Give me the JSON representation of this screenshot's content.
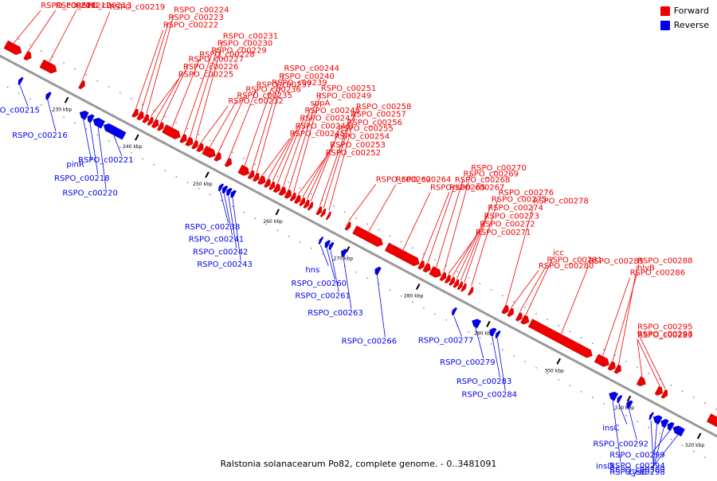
{
  "legend": {
    "forward_label": "Forward",
    "reverse_label": "Reverse",
    "forward_color": "#ee0000",
    "reverse_color": "#0000ee"
  },
  "caption": "Ralstonia solanacearum Po82, complete genome. - 0..3481091",
  "colors": {
    "forward": "#ee0000",
    "reverse": "#0000ee",
    "backbone": "#999999"
  },
  "backbone_range_kbp": [
    220,
    322
  ],
  "scale_ticks": [
    "230 kbp",
    "240 kbp",
    "250 kbp",
    "260 kbp",
    "270 kbp",
    "280 kbp",
    "290 kbp",
    "300 kbp",
    "310 kbp",
    "320 kbp"
  ],
  "forward_genes": [
    {
      "label": "RSPO_c00211",
      "start": 220.0,
      "end": 222.2
    },
    {
      "label": "RSPO_c00212",
      "start": 222.8,
      "end": 223.6
    },
    {
      "label": "RSPO_c00213",
      "start": 225.1,
      "end": 227.2
    },
    {
      "label": "RSPO_c00219",
      "start": 230.6,
      "end": 231.2
    },
    {
      "label": "RSPO_c00222",
      "start": 238.2,
      "end": 238.8
    },
    {
      "label": "RSPO_c00223",
      "start": 238.9,
      "end": 239.6
    },
    {
      "label": "RSPO_c00224",
      "start": 239.7,
      "end": 240.3
    },
    {
      "label": "RSPO_c00225",
      "start": 240.4,
      "end": 240.9
    },
    {
      "label": "RSPO_c00226",
      "start": 241.0,
      "end": 241.7
    },
    {
      "label": "RSPO_c00227",
      "start": 241.8,
      "end": 242.4
    },
    {
      "label": "RSPO_c00228",
      "start": 242.5,
      "end": 244.8
    },
    {
      "label": "RSPO_c00229",
      "start": 245.0,
      "end": 245.7
    },
    {
      "label": "RSPO_c00230",
      "start": 245.8,
      "end": 246.6
    },
    {
      "label": "RSPO_c00231",
      "start": 246.7,
      "end": 247.3
    },
    {
      "label": "RSPO_c00232",
      "start": 247.4,
      "end": 248.1
    },
    {
      "label": "RSPO_c00235",
      "start": 248.2,
      "end": 249.8
    },
    {
      "label": "RSPO_c00236",
      "start": 249.9,
      "end": 250.6
    },
    {
      "label": "RSPO_c00237",
      "start": 251.4,
      "end": 252.1
    },
    {
      "label": "RSPO_c00239",
      "start": 253.3,
      "end": 254.6
    },
    {
      "label": "RSPO_c00240",
      "start": 254.7,
      "end": 255.3
    },
    {
      "label": "RSPO_c00244",
      "start": 255.4,
      "end": 256.0
    },
    {
      "label": "RSPO_c00245",
      "start": 256.1,
      "end": 256.9
    },
    {
      "label": "RSPO_c00246",
      "start": 257.0,
      "end": 257.6
    },
    {
      "label": "RSPO_c00247",
      "start": 257.7,
      "end": 258.2
    },
    {
      "label": "RSPO_c00248",
      "start": 258.3,
      "end": 259.0
    },
    {
      "label": "sppA",
      "start": 259.1,
      "end": 259.8
    },
    {
      "label": "RSPO_c00249",
      "start": 259.9,
      "end": 260.6
    },
    {
      "label": "RSPO_c00251",
      "start": 260.7,
      "end": 261.2
    },
    {
      "label": "RSPO_c00252",
      "start": 261.3,
      "end": 261.9
    },
    {
      "label": "RSPO_c00253",
      "start": 262.0,
      "end": 262.5
    },
    {
      "label": "RSPO_c00254",
      "start": 262.6,
      "end": 263.1
    },
    {
      "label": "RSPO_c00255",
      "start": 263.2,
      "end": 263.6
    },
    {
      "label": "RSPO_c00256",
      "start": 264.4,
      "end": 264.9
    },
    {
      "label": "RSPO_c00257",
      "start": 265.0,
      "end": 265.4
    },
    {
      "label": "RSPO_c00258",
      "start": 265.8,
      "end": 266.1
    },
    {
      "label": "RSPO_c00262",
      "start": 268.5,
      "end": 269.0
    },
    {
      "label": "RSPO_c00264",
      "start": 269.6,
      "end": 273.6
    },
    {
      "label": "RSPO_c00265",
      "start": 274.2,
      "end": 278.8
    },
    {
      "label": "RSPO_c00267",
      "start": 278.9,
      "end": 279.5
    },
    {
      "label": "RSPO_c00268",
      "start": 279.6,
      "end": 280.4
    },
    {
      "label": "RSPO_c00269",
      "start": 280.5,
      "end": 281.9
    },
    {
      "label": "RSPO_c00270",
      "start": 282.0,
      "end": 282.6
    },
    {
      "label": "RSPO_c00271",
      "start": 282.7,
      "end": 283.2
    },
    {
      "label": "RSPO_c00272",
      "start": 283.3,
      "end": 283.8
    },
    {
      "label": "RSPO_c00273",
      "start": 283.9,
      "end": 284.4
    },
    {
      "label": "RSPO_c00274",
      "start": 284.5,
      "end": 284.9
    },
    {
      "label": "RSPO_c00275",
      "start": 285.0,
      "end": 285.4
    },
    {
      "label": "RSPO_c00276",
      "start": 286.0,
      "end": 286.4
    },
    {
      "label": "RSPO_c00278",
      "start": 290.8,
      "end": 291.5
    },
    {
      "label": "RSPO_c00280",
      "start": 291.6,
      "end": 292.2
    },
    {
      "label": "RSPO_c00281",
      "start": 292.8,
      "end": 293.4
    },
    {
      "label": "icc",
      "start": 293.5,
      "end": 294.4
    },
    {
      "label": "RSPO_c00285",
      "start": 294.6,
      "end": 303.4
    },
    {
      "label": "RSPO_c00286",
      "start": 304.0,
      "end": 305.8
    },
    {
      "label": "hlyB",
      "start": 305.9,
      "end": 306.7
    },
    {
      "label": "RSPO_c00288",
      "start": 306.8,
      "end": 307.5
    },
    {
      "label": "RSPO_c00289",
      "start": 310.0,
      "end": 311.0
    },
    {
      "label": "RSPO_c00293",
      "start": 312.6,
      "end": 313.4
    },
    {
      "label": "RSPO_c00295",
      "start": 313.5,
      "end": 314.1
    },
    {
      "label": "",
      "start": 320.0,
      "end": 321.9
    }
  ],
  "reverse_genes": [
    {
      "label": "RSPO_c00215",
      "start": 223.5,
      "end": 223.9
    },
    {
      "label": "RSPO_c00216",
      "start": 227.4,
      "end": 227.9
    },
    {
      "label": "pinR",
      "start": 232.2,
      "end": 233.2
    },
    {
      "label": "RSPO_c00218",
      "start": 233.3,
      "end": 234.0
    },
    {
      "label": "RSPO_c00220",
      "start": 234.1,
      "end": 235.5
    },
    {
      "label": "RSPO_c00221",
      "start": 235.6,
      "end": 238.5
    },
    {
      "label": "RSPO_c00238",
      "start": 252.0,
      "end": 252.4
    },
    {
      "label": "RSPO_c00241",
      "start": 252.5,
      "end": 253.0
    },
    {
      "label": "RSPO_c00242",
      "start": 253.1,
      "end": 253.6
    },
    {
      "label": "RSPO_c00243",
      "start": 253.7,
      "end": 254.2
    },
    {
      "label": "hns",
      "start": 266.3,
      "end": 266.6
    },
    {
      "label": "RSPO_c00260",
      "start": 267.1,
      "end": 267.6
    },
    {
      "label": "RSPO_c00261",
      "start": 267.7,
      "end": 268.1
    },
    {
      "label": "RSPO_c00263",
      "start": 269.4,
      "end": 270.0
    },
    {
      "label": "RSPO_c00266",
      "start": 274.2,
      "end": 274.8
    },
    {
      "label": "RSPO_c00277",
      "start": 285.2,
      "end": 285.6
    },
    {
      "label": "RSPO_c00279",
      "start": 288.0,
      "end": 289.0
    },
    {
      "label": "RSPO_c00283",
      "start": 290.5,
      "end": 291.2
    },
    {
      "label": "RSPO_c00284",
      "start": 291.4,
      "end": 291.8
    },
    {
      "label": "insD",
      "start": 307.5,
      "end": 308.5
    },
    {
      "label": "insC",
      "start": 308.7,
      "end": 309.1
    },
    {
      "label": "RSPO_c00292",
      "start": 310.0,
      "end": 310.6
    },
    {
      "label": "RSPO_c00294",
      "start": 313.3,
      "end": 313.6
    },
    {
      "label": "cysC",
      "start": 313.8,
      "end": 314.8
    },
    {
      "label": "RSPO_c00298",
      "start": 314.9,
      "end": 315.7
    },
    {
      "label": "RSPO_c00299",
      "start": 315.8,
      "end": 316.5
    },
    {
      "label": "RSPO_c00300",
      "start": 316.6,
      "end": 318.0
    }
  ]
}
